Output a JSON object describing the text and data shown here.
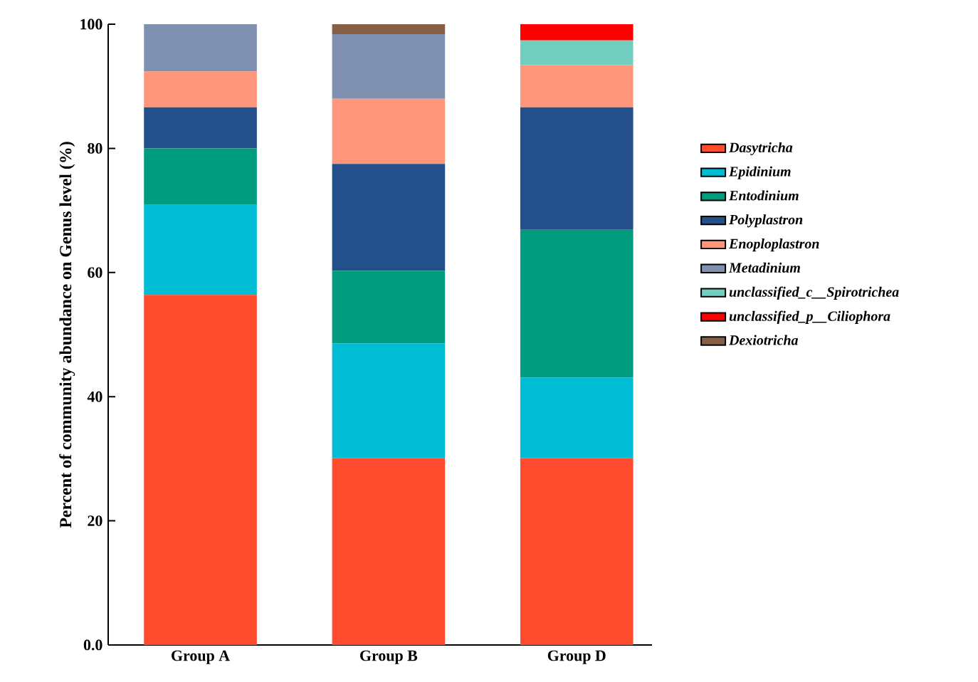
{
  "chart_data": {
    "type": "bar",
    "stacked": true,
    "ylabel": "Percent of community abundance on Genus level (%)",
    "categories": [
      "Group A",
      "Group B",
      "Group D"
    ],
    "series": [
      {
        "name": "Dasytricha",
        "color": "#ff4b2e",
        "values": [
          56.4,
          30.1,
          30.1
        ]
      },
      {
        "name": "Epidinium",
        "color": "#00bcd4",
        "values": [
          14.5,
          18.5,
          13.0
        ]
      },
      {
        "name": "Entodinium",
        "color": "#009c80",
        "values": [
          9.1,
          11.7,
          23.8
        ]
      },
      {
        "name": "Polyplastron",
        "color": "#23508a",
        "values": [
          6.6,
          17.2,
          19.7
        ]
      },
      {
        "name": "Enoploplastron",
        "color": "#ff957a",
        "values": [
          5.8,
          10.5,
          6.8
        ]
      },
      {
        "name": "Metadinium",
        "color": "#7f90b0",
        "values": [
          7.6,
          10.4,
          0
        ]
      },
      {
        "name": "unclassified_c__Spirotrichea",
        "color": "#72cfc0",
        "values": [
          0,
          0,
          4.0
        ]
      },
      {
        "name": "unclassified_p__Ciliophora",
        "color": "#ff0000",
        "values": [
          0,
          0,
          2.6
        ]
      },
      {
        "name": "Dexiotricha",
        "color": "#875f44",
        "values": [
          0,
          1.6,
          0
        ]
      }
    ],
    "ylim": [
      0,
      100
    ],
    "yticks": [
      {
        "value": 0,
        "label": "0.0"
      },
      20,
      40,
      60,
      80,
      100
    ],
    "legend": "right",
    "grid": false
  }
}
